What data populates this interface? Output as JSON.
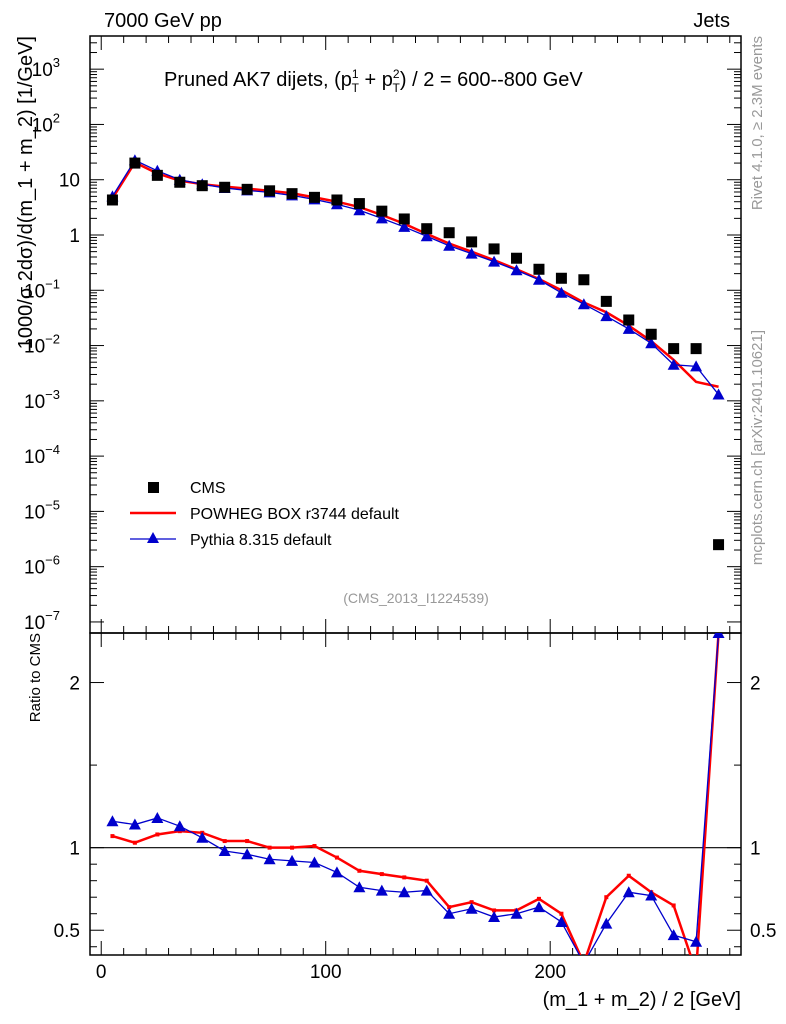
{
  "header": {
    "left": "7000 GeV pp",
    "right": "Jets"
  },
  "side_labels": {
    "rivet": "Rivet 4.1.0, ≥ 2.3M events",
    "mcplots": "mcplots.cern.ch [arXiv:2401.10621]"
  },
  "chart_data": {
    "type": "scatter",
    "title_main": "Pruned AK7 dijets, (p",
    "title_sup1": "1",
    "title_sub1": "T",
    "title_plus": " + p",
    "title_sup2": "2",
    "title_sub2": "T",
    "title_rest": ") / 2 = 600--800 GeV",
    "ylabel": "1000/σ  2dσ)/d(m_1 + m_2) [1/GeV]",
    "ratio_ylabel": "Ratio to CMS",
    "xlabel": "(m_1 + m_2) / 2 [GeV]",
    "analysis_id": "(CMS_2013_I1224539)",
    "xlim": [
      -5,
      285
    ],
    "ylim_log": [
      -7.2,
      3.6
    ],
    "ratio_ylim": [
      0.35,
      2.3
    ],
    "x_ticks": [
      0,
      100,
      200
    ],
    "y_tick_labels": [
      {
        "exp": 3,
        "label": "10",
        "sup": "3"
      },
      {
        "exp": 2,
        "label": "10",
        "sup": "2"
      },
      {
        "exp": 1,
        "label": "10",
        "sup": ""
      },
      {
        "exp": 0,
        "label": "1",
        "sup": ""
      },
      {
        "exp": -1,
        "label": "10",
        "sup": "−1"
      },
      {
        "exp": -2,
        "label": "10",
        "sup": "−2"
      },
      {
        "exp": -3,
        "label": "10",
        "sup": "−3"
      },
      {
        "exp": -4,
        "label": "10",
        "sup": "−4"
      },
      {
        "exp": -5,
        "label": "10",
        "sup": "−5"
      },
      {
        "exp": -6,
        "label": "10",
        "sup": "−6"
      },
      {
        "exp": -7,
        "label": "10",
        "sup": "−7"
      }
    ],
    "ratio_ticks": [
      0.5,
      1,
      2
    ],
    "ratio_tick_labels": [
      "0.5",
      "1",
      "2"
    ],
    "x": [
      5,
      15,
      25,
      35,
      45,
      55,
      65,
      75,
      85,
      95,
      105,
      115,
      125,
      135,
      145,
      155,
      165,
      175,
      185,
      195,
      205,
      215,
      225,
      235,
      245,
      255,
      265,
      275
    ],
    "series": [
      {
        "name": "CMS",
        "color": "#000000",
        "marker": "square",
        "values": [
          4.3,
          20.0,
          12.0,
          9.0,
          7.8,
          7.3,
          6.7,
          6.3,
          5.6,
          4.8,
          4.3,
          3.7,
          2.7,
          1.95,
          1.3,
          1.1,
          0.75,
          0.56,
          0.38,
          0.24,
          0.165,
          0.155,
          0.063,
          0.029,
          0.016,
          0.0088,
          0.0088,
          2.5e-06
        ]
      },
      {
        "name": "POWHEG BOX r3744 default",
        "color": "#ff0000",
        "marker": "line",
        "values": [
          4.6,
          20.5,
          13.0,
          9.6,
          8.3,
          7.5,
          6.9,
          6.3,
          5.7,
          4.8,
          4.0,
          3.2,
          2.3,
          1.6,
          1.05,
          0.7,
          0.5,
          0.35,
          0.24,
          0.16,
          0.1,
          0.06,
          0.04,
          0.023,
          0.012,
          0.0055,
          0.0022,
          0.0018
        ],
        "ratio": [
          1.07,
          1.03,
          1.08,
          1.1,
          1.09,
          1.04,
          1.04,
          1.0,
          1.0,
          1.01,
          0.94,
          0.86,
          0.84,
          0.82,
          0.8,
          0.64,
          0.67,
          0.62,
          0.62,
          0.69,
          0.6,
          0.3,
          0.7,
          0.83,
          0.73,
          0.65,
          0.25,
          2.3
        ]
      },
      {
        "name": "Pythia 8.315 default",
        "color": "#0000cc",
        "marker": "triangle",
        "values": [
          5.0,
          22.5,
          14.5,
          10.0,
          8.3,
          7.1,
          6.4,
          5.9,
          5.2,
          4.4,
          3.6,
          2.8,
          2.0,
          1.4,
          0.95,
          0.64,
          0.46,
          0.33,
          0.23,
          0.155,
          0.09,
          0.056,
          0.034,
          0.02,
          0.011,
          0.0045,
          0.0042,
          0.0013
        ],
        "ratio": [
          1.16,
          1.14,
          1.18,
          1.13,
          1.06,
          0.98,
          0.96,
          0.93,
          0.92,
          0.91,
          0.85,
          0.76,
          0.74,
          0.73,
          0.74,
          0.6,
          0.63,
          0.58,
          0.6,
          0.64,
          0.55,
          0.3,
          0.54,
          0.73,
          0.71,
          0.47,
          0.43,
          2.3
        ]
      }
    ]
  }
}
